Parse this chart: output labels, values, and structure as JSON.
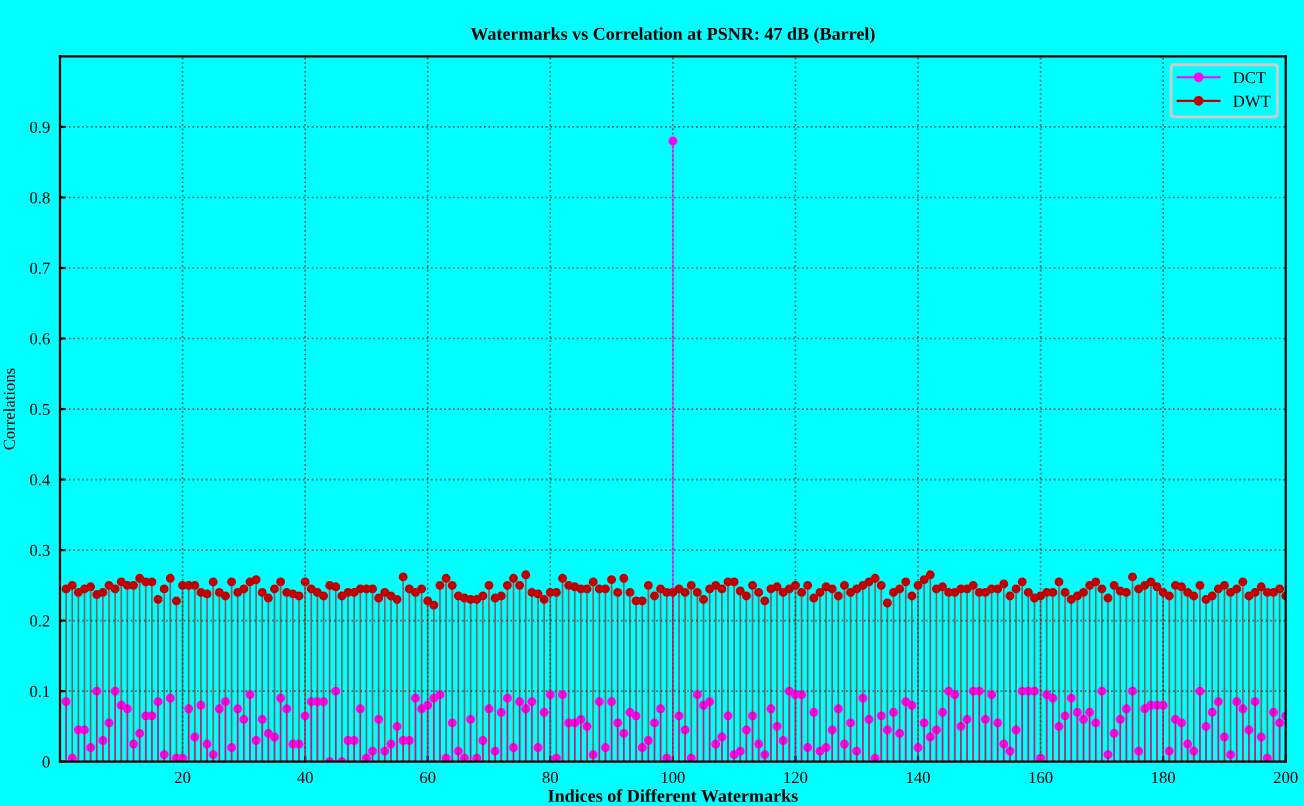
{
  "chart_data": {
    "type": "lollipop",
    "title": "Watermarks vs Correlation at PSNR: 47 dB (Barrel)",
    "xlabel": "Indices of Different Watermarks",
    "ylabel": "Correlations",
    "x": [
      1,
      2,
      3,
      4,
      5,
      6,
      7,
      8,
      9,
      10,
      11,
      12,
      13,
      14,
      15,
      16,
      17,
      18,
      19,
      20,
      21,
      22,
      23,
      24,
      25,
      26,
      27,
      28,
      29,
      30,
      31,
      32,
      33,
      34,
      35,
      36,
      37,
      38,
      39,
      40,
      41,
      42,
      43,
      44,
      45,
      46,
      47,
      48,
      49,
      50,
      51,
      52,
      53,
      54,
      55,
      56,
      57,
      58,
      59,
      60,
      61,
      62,
      63,
      64,
      65,
      66,
      67,
      68,
      69,
      70,
      71,
      72,
      73,
      74,
      75,
      76,
      77,
      78,
      79,
      80,
      81,
      82,
      83,
      84,
      85,
      86,
      87,
      88,
      89,
      90,
      91,
      92,
      93,
      94,
      95,
      96,
      97,
      98,
      99,
      100,
      101,
      102,
      103,
      104,
      105,
      106,
      107,
      108,
      109,
      110,
      111,
      112,
      113,
      114,
      115,
      116,
      117,
      118,
      119,
      120,
      121,
      122,
      123,
      124,
      125,
      126,
      127,
      128,
      129,
      130,
      131,
      132,
      133,
      134,
      135,
      136,
      137,
      138,
      139,
      140,
      141,
      142,
      143,
      144,
      145,
      146,
      147,
      148,
      149,
      150,
      151,
      152,
      153,
      154,
      155,
      156,
      157,
      158,
      159,
      160,
      161,
      162,
      163,
      164,
      165,
      166,
      167,
      168,
      169,
      170,
      171,
      172,
      173,
      174,
      175,
      176,
      177,
      178,
      179,
      180,
      181,
      182,
      183,
      184,
      185,
      186,
      187,
      188,
      189,
      190,
      191,
      192,
      193,
      194,
      195,
      196,
      197,
      198,
      199,
      200
    ],
    "series": [
      {
        "name": "DCT",
        "color": "#ff00ff",
        "values": [
          0.085,
          0.005,
          0.045,
          0.045,
          0.02,
          0.1,
          0.03,
          0.055,
          0.1,
          0.08,
          0.075,
          0.025,
          0.04,
          0.065,
          0.065,
          0.085,
          0.01,
          0.09,
          0.005,
          0.005,
          0.075,
          0.035,
          0.08,
          0.025,
          0.01,
          0.075,
          0.085,
          0.02,
          0.075,
          0.06,
          0.095,
          0.03,
          0.06,
          0.04,
          0.035,
          0.09,
          0.075,
          0.025,
          0.025,
          0.065,
          0.085,
          0.085,
          0.085,
          0,
          0.1,
          0,
          0.03,
          0.03,
          0.075,
          0.005,
          0.015,
          0.06,
          0.015,
          0.025,
          0.05,
          0.03,
          0.03,
          0.09,
          0.075,
          0.08,
          0.09,
          0.095,
          0.005,
          0.055,
          0.015,
          0.005,
          0.06,
          0.005,
          0.03,
          0.075,
          0.015,
          0.07,
          0.09,
          0.02,
          0.085,
          0.075,
          0.085,
          0.02,
          0.07,
          0.095,
          0.005,
          0.095,
          0.055,
          0.055,
          0.06,
          0.05,
          0.01,
          0.085,
          0.02,
          0.085,
          0.055,
          0.04,
          0.07,
          0.065,
          0.02,
          0.03,
          0.055,
          0.075,
          0.005,
          0.88,
          0.065,
          0.045,
          0.005,
          0.095,
          0.08,
          0.085,
          0.025,
          0.035,
          0.065,
          0.01,
          0.015,
          0.045,
          0.065,
          0.025,
          0.01,
          0.075,
          0.05,
          0.03,
          0.1,
          0.095,
          0.095,
          0.02,
          0.07,
          0.015,
          0.02,
          0.045,
          0.075,
          0.025,
          0.055,
          0.015,
          0.09,
          0.06,
          0.005,
          0.065,
          0.045,
          0.07,
          0.04,
          0.085,
          0.08,
          0.02,
          0.055,
          0.035,
          0.045,
          0.07,
          0.1,
          0.095,
          0.05,
          0.06,
          0.1,
          0.1,
          0.06,
          0.095,
          0.055,
          0.025,
          0.015,
          0.045,
          0.1,
          0.1,
          0.1,
          0.005,
          0.095,
          0.09,
          0.05,
          0.065,
          0.09,
          0.07,
          0.06,
          0.07,
          0.055,
          0.1,
          0.01,
          0.04,
          0.06,
          0.075,
          0.1,
          0.015,
          0.075,
          0.08,
          0.08,
          0.08,
          0.015,
          0.06,
          0.055,
          0.025,
          0.015,
          0.1,
          0.05,
          0.07,
          0.085,
          0.035,
          0.01,
          0.085,
          0.075,
          0.045,
          0.085,
          0.035,
          0.005,
          0.07,
          0.055,
          0.065
        ]
      },
      {
        "name": "DWT",
        "color": "#c00000",
        "values": [
          0.245,
          0.25,
          0.24,
          0.245,
          0.248,
          0.237,
          0.24,
          0.25,
          0.245,
          0.255,
          0.25,
          0.25,
          0.26,
          0.255,
          0.255,
          0.23,
          0.245,
          0.26,
          0.228,
          0.25,
          0.25,
          0.25,
          0.24,
          0.238,
          0.255,
          0.24,
          0.235,
          0.255,
          0.24,
          0.245,
          0.255,
          0.258,
          0.24,
          0.232,
          0.245,
          0.255,
          0.24,
          0.238,
          0.235,
          0.255,
          0.245,
          0.24,
          0.235,
          0.25,
          0.248,
          0.235,
          0.24,
          0.24,
          0.245,
          0.245,
          0.245,
          0.232,
          0.24,
          0.235,
          0.23,
          0.262,
          0.245,
          0.24,
          0.245,
          0.228,
          0.222,
          0.25,
          0.26,
          0.25,
          0.235,
          0.232,
          0.23,
          0.23,
          0.235,
          0.25,
          0.232,
          0.235,
          0.25,
          0.26,
          0.25,
          0.265,
          0.24,
          0.238,
          0.23,
          0.24,
          0.24,
          0.26,
          0.25,
          0.248,
          0.245,
          0.245,
          0.255,
          0.245,
          0.245,
          0.258,
          0.24,
          0.26,
          0.24,
          0.228,
          0.228,
          0.25,
          0.235,
          0.245,
          0.24,
          0.24,
          0.245,
          0.24,
          0.25,
          0.24,
          0.23,
          0.245,
          0.25,
          0.245,
          0.255,
          0.255,
          0.242,
          0.235,
          0.25,
          0.24,
          0.228,
          0.245,
          0.248,
          0.24,
          0.245,
          0.25,
          0.24,
          0.25,
          0.232,
          0.24,
          0.248,
          0.245,
          0.235,
          0.25,
          0.24,
          0.245,
          0.25,
          0.255,
          0.26,
          0.25,
          0.225,
          0.24,
          0.245,
          0.255,
          0.235,
          0.25,
          0.258,
          0.265,
          0.245,
          0.248,
          0.24,
          0.24,
          0.245,
          0.245,
          0.25,
          0.24,
          0.24,
          0.245,
          0.245,
          0.252,
          0.235,
          0.245,
          0.255,
          0.24,
          0.232,
          0.235,
          0.24,
          0.24,
          0.255,
          0.24,
          0.23,
          0.235,
          0.24,
          0.25,
          0.255,
          0.245,
          0.232,
          0.25,
          0.242,
          0.24,
          0.262,
          0.245,
          0.25,
          0.255,
          0.248,
          0.24,
          0.235,
          0.25,
          0.248,
          0.24,
          0.235,
          0.25,
          0.23,
          0.235,
          0.245,
          0.25,
          0.24,
          0.245,
          0.255,
          0.235,
          0.24,
          0.248,
          0.24,
          0.24,
          0.245,
          0.235
        ]
      }
    ],
    "xlim": [
      0,
      200
    ],
    "xticks": [
      20,
      40,
      60,
      80,
      100,
      120,
      140,
      160,
      180,
      200
    ],
    "ylim": [
      0,
      1
    ],
    "yticks": [
      0,
      0.1,
      0.2,
      0.3,
      0.4,
      0.5,
      0.6,
      0.7,
      0.8,
      0.9
    ],
    "grid": true,
    "legend": "top right",
    "marker": "circle",
    "line_style": "solid"
  }
}
